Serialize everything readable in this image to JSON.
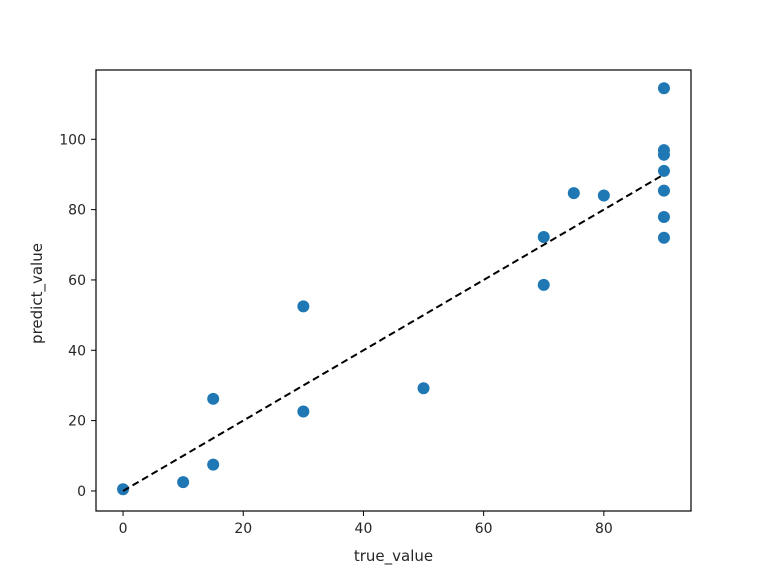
{
  "chart_data": {
    "type": "scatter",
    "xlabel": "true_value",
    "ylabel": "predict_value",
    "xlim": [
      -4.5,
      94.5
    ],
    "ylim": [
      -5.7,
      119.7
    ],
    "xticks": [
      0,
      20,
      40,
      60,
      80
    ],
    "yticks": [
      0,
      20,
      40,
      60,
      80,
      100
    ],
    "grid": false,
    "points": [
      {
        "x": 0,
        "y": 0.5
      },
      {
        "x": 10,
        "y": 2.5
      },
      {
        "x": 15,
        "y": 7.5
      },
      {
        "x": 15,
        "y": 26.2
      },
      {
        "x": 30,
        "y": 22.6
      },
      {
        "x": 30,
        "y": 52.5
      },
      {
        "x": 50,
        "y": 29.2
      },
      {
        "x": 70,
        "y": 58.6
      },
      {
        "x": 70,
        "y": 72.2
      },
      {
        "x": 75,
        "y": 84.7
      },
      {
        "x": 80,
        "y": 84.0
      },
      {
        "x": 90,
        "y": 114.5
      },
      {
        "x": 90,
        "y": 96.9
      },
      {
        "x": 90,
        "y": 95.6
      },
      {
        "x": 90,
        "y": 91.0
      },
      {
        "x": 90,
        "y": 85.4
      },
      {
        "x": 90,
        "y": 77.9
      },
      {
        "x": 90,
        "y": 72.0
      }
    ],
    "reference_line": {
      "x": [
        0,
        90
      ],
      "y": [
        0,
        90
      ],
      "style": "dashed"
    },
    "colors": {
      "points": "#1f77b4",
      "reference_line": "#000000",
      "axes": "#000000"
    }
  }
}
